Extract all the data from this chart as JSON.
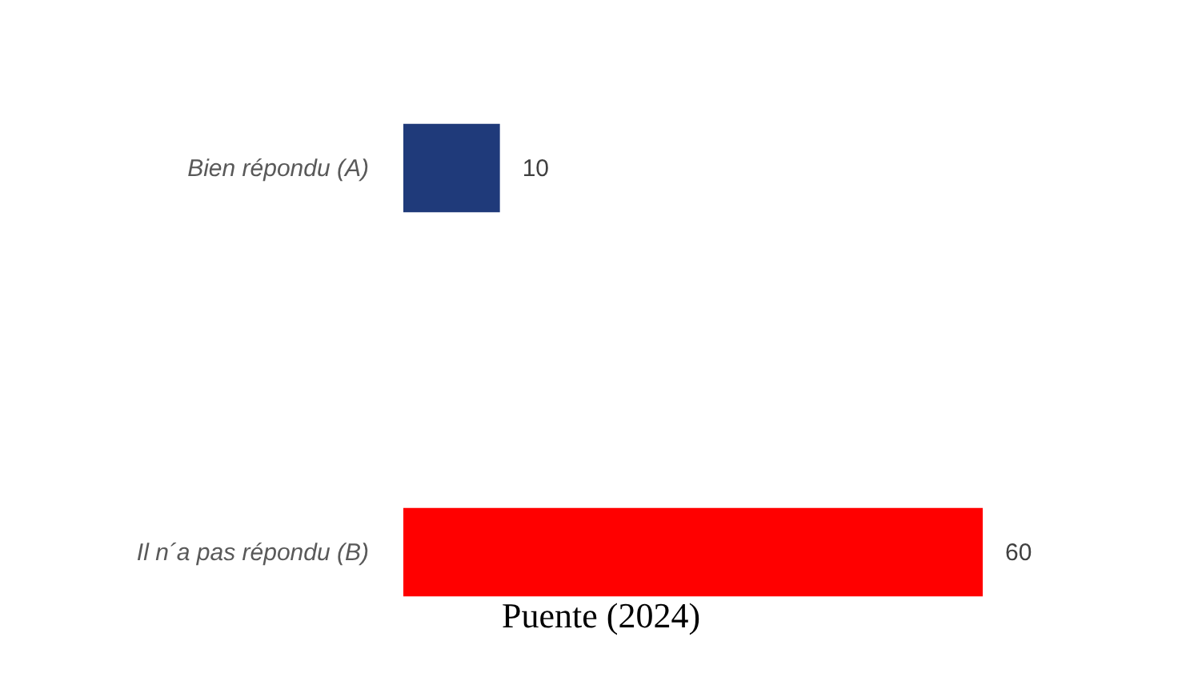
{
  "chart_data": {
    "type": "bar",
    "orientation": "horizontal",
    "categories": [
      "Bien répondu (A)",
      "Il n´a pas répondu (B)"
    ],
    "values": [
      10,
      60
    ],
    "colors": [
      "#1f3a7a",
      "#ff0000"
    ],
    "data_labels": true,
    "annotations": [
      "Puente (2024)"
    ]
  }
}
